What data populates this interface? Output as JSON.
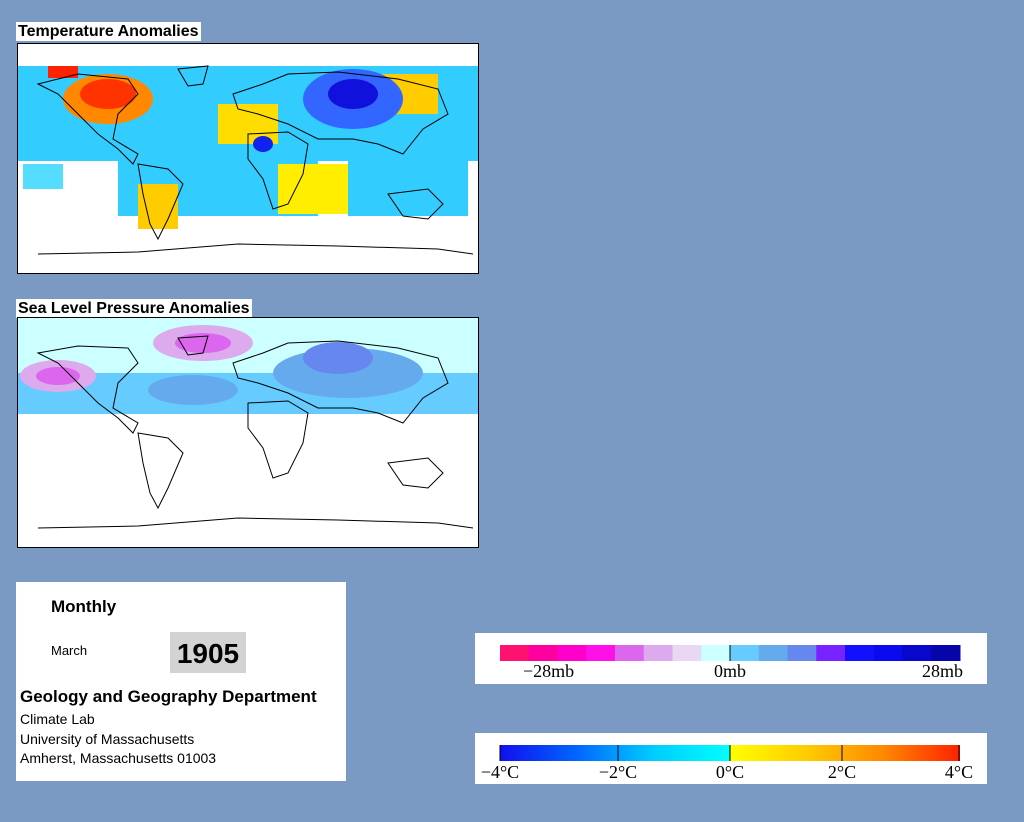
{
  "temperature_panel": {
    "title": "Temperature Anomalies"
  },
  "pressure_panel": {
    "title": "Sea Level Pressure Anomalies"
  },
  "info": {
    "period": "Monthly",
    "month": "March",
    "year": "1905",
    "department": "Geology and Geography Department",
    "lab": "Climate Lab",
    "university": "University of Massachusetts",
    "address": "Amherst, Massachusetts 01003"
  },
  "pressure_legend": {
    "labels": [
      "−28mb",
      "0mb",
      "28mb"
    ],
    "colors": [
      "#ff1170",
      "#ff00a0",
      "#ff00cc",
      "#ff10e8",
      "#dd66ee",
      "#ddaaee",
      "#e8d8f4",
      "#ccffff",
      "#66ccff",
      "#66aaee",
      "#6688ee",
      "#7722ff",
      "#1111ff",
      "#0a0aee",
      "#0808cc",
      "#0505a8"
    ]
  },
  "temperature_legend": {
    "labels": [
      "−4°C",
      "−2°C",
      "0°C",
      "2°C",
      "4°C"
    ],
    "stops": [
      "#1010ee",
      "#0066ff",
      "#00ccff",
      "#00ffff",
      "#ffff00",
      "#ffcc00",
      "#ff8800",
      "#ff2200"
    ]
  },
  "colors": {
    "background": "#7a9ac3",
    "coastline": "#000000"
  }
}
